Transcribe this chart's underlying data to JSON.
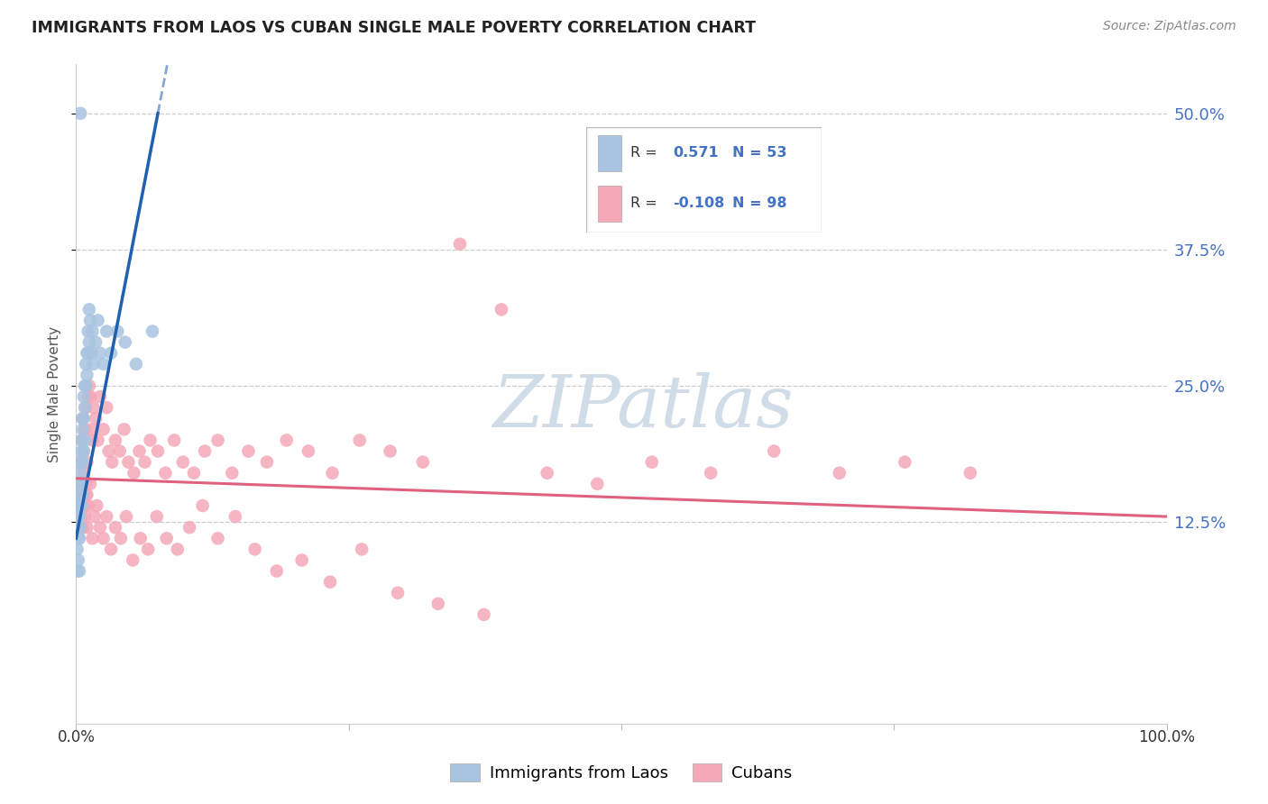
{
  "title": "IMMIGRANTS FROM LAOS VS CUBAN SINGLE MALE POVERTY CORRELATION CHART",
  "source": "Source: ZipAtlas.com",
  "ylabel": "Single Male Poverty",
  "r_blue": "0.571",
  "n_blue": "53",
  "r_pink": "-0.108",
  "n_pink": "98",
  "blue_color": "#a8c4e0",
  "pink_color": "#f4a8b8",
  "trendline_blue": "#2060b0",
  "trendline_pink": "#e06080",
  "watermark_color": "#d0dce8",
  "legend_label_blue": "Immigrants from Laos",
  "legend_label_pink": "Cubans",
  "xmin": 0.0,
  "xmax": 1.0,
  "ymin": -0.06,
  "ymax": 0.545,
  "ytick_positions": [
    0.125,
    0.25,
    0.375,
    0.5
  ],
  "ytick_labels": [
    "12.5%",
    "25.0%",
    "37.5%",
    "50.0%"
  ],
  "laos_x": [
    0.001,
    0.001,
    0.001,
    0.002,
    0.002,
    0.002,
    0.002,
    0.003,
    0.003,
    0.003,
    0.003,
    0.003,
    0.003,
    0.004,
    0.004,
    0.004,
    0.005,
    0.005,
    0.005,
    0.005,
    0.006,
    0.006,
    0.006,
    0.006,
    0.007,
    0.007,
    0.007,
    0.008,
    0.008,
    0.008,
    0.009,
    0.009,
    0.01,
    0.01,
    0.011,
    0.011,
    0.012,
    0.012,
    0.013,
    0.014,
    0.015,
    0.016,
    0.018,
    0.02,
    0.022,
    0.025,
    0.028,
    0.032,
    0.038,
    0.045,
    0.055,
    0.07,
    0.004
  ],
  "laos_y": [
    0.12,
    0.1,
    0.08,
    0.14,
    0.13,
    0.11,
    0.09,
    0.16,
    0.15,
    0.14,
    0.13,
    0.11,
    0.08,
    0.18,
    0.17,
    0.12,
    0.2,
    0.19,
    0.16,
    0.14,
    0.22,
    0.21,
    0.18,
    0.15,
    0.24,
    0.22,
    0.19,
    0.25,
    0.23,
    0.2,
    0.27,
    0.25,
    0.28,
    0.26,
    0.3,
    0.28,
    0.32,
    0.29,
    0.31,
    0.28,
    0.3,
    0.27,
    0.29,
    0.31,
    0.28,
    0.27,
    0.3,
    0.28,
    0.3,
    0.29,
    0.27,
    0.3,
    0.5
  ],
  "cuba_x": [
    0.003,
    0.004,
    0.005,
    0.006,
    0.006,
    0.007,
    0.007,
    0.008,
    0.008,
    0.009,
    0.009,
    0.01,
    0.01,
    0.011,
    0.012,
    0.013,
    0.014,
    0.015,
    0.016,
    0.018,
    0.02,
    0.022,
    0.025,
    0.028,
    0.03,
    0.033,
    0.036,
    0.04,
    0.044,
    0.048,
    0.053,
    0.058,
    0.063,
    0.068,
    0.075,
    0.082,
    0.09,
    0.098,
    0.108,
    0.118,
    0.13,
    0.143,
    0.158,
    0.175,
    0.193,
    0.213,
    0.235,
    0.26,
    0.288,
    0.318,
    0.352,
    0.39,
    0.432,
    0.478,
    0.528,
    0.582,
    0.64,
    0.7,
    0.76,
    0.82,
    0.003,
    0.004,
    0.005,
    0.006,
    0.007,
    0.008,
    0.009,
    0.01,
    0.011,
    0.013,
    0.015,
    0.017,
    0.019,
    0.022,
    0.025,
    0.028,
    0.032,
    0.036,
    0.041,
    0.046,
    0.052,
    0.059,
    0.066,
    0.074,
    0.083,
    0.093,
    0.104,
    0.116,
    0.13,
    0.146,
    0.164,
    0.184,
    0.207,
    0.233,
    0.262,
    0.295,
    0.332,
    0.374
  ],
  "cuba_y": [
    0.18,
    0.16,
    0.2,
    0.15,
    0.22,
    0.17,
    0.19,
    0.14,
    0.21,
    0.16,
    0.23,
    0.15,
    0.18,
    0.24,
    0.25,
    0.24,
    0.21,
    0.2,
    0.23,
    0.22,
    0.2,
    0.24,
    0.21,
    0.23,
    0.19,
    0.18,
    0.2,
    0.19,
    0.21,
    0.18,
    0.17,
    0.19,
    0.18,
    0.2,
    0.19,
    0.17,
    0.2,
    0.18,
    0.17,
    0.19,
    0.2,
    0.17,
    0.19,
    0.18,
    0.2,
    0.19,
    0.17,
    0.2,
    0.19,
    0.18,
    0.38,
    0.32,
    0.17,
    0.16,
    0.18,
    0.17,
    0.19,
    0.17,
    0.18,
    0.17,
    0.15,
    0.14,
    0.13,
    0.12,
    0.14,
    0.13,
    0.15,
    0.12,
    0.14,
    0.16,
    0.11,
    0.13,
    0.14,
    0.12,
    0.11,
    0.13,
    0.1,
    0.12,
    0.11,
    0.13,
    0.09,
    0.11,
    0.1,
    0.13,
    0.11,
    0.1,
    0.12,
    0.14,
    0.11,
    0.13,
    0.1,
    0.08,
    0.09,
    0.07,
    0.1,
    0.06,
    0.05,
    0.04
  ]
}
